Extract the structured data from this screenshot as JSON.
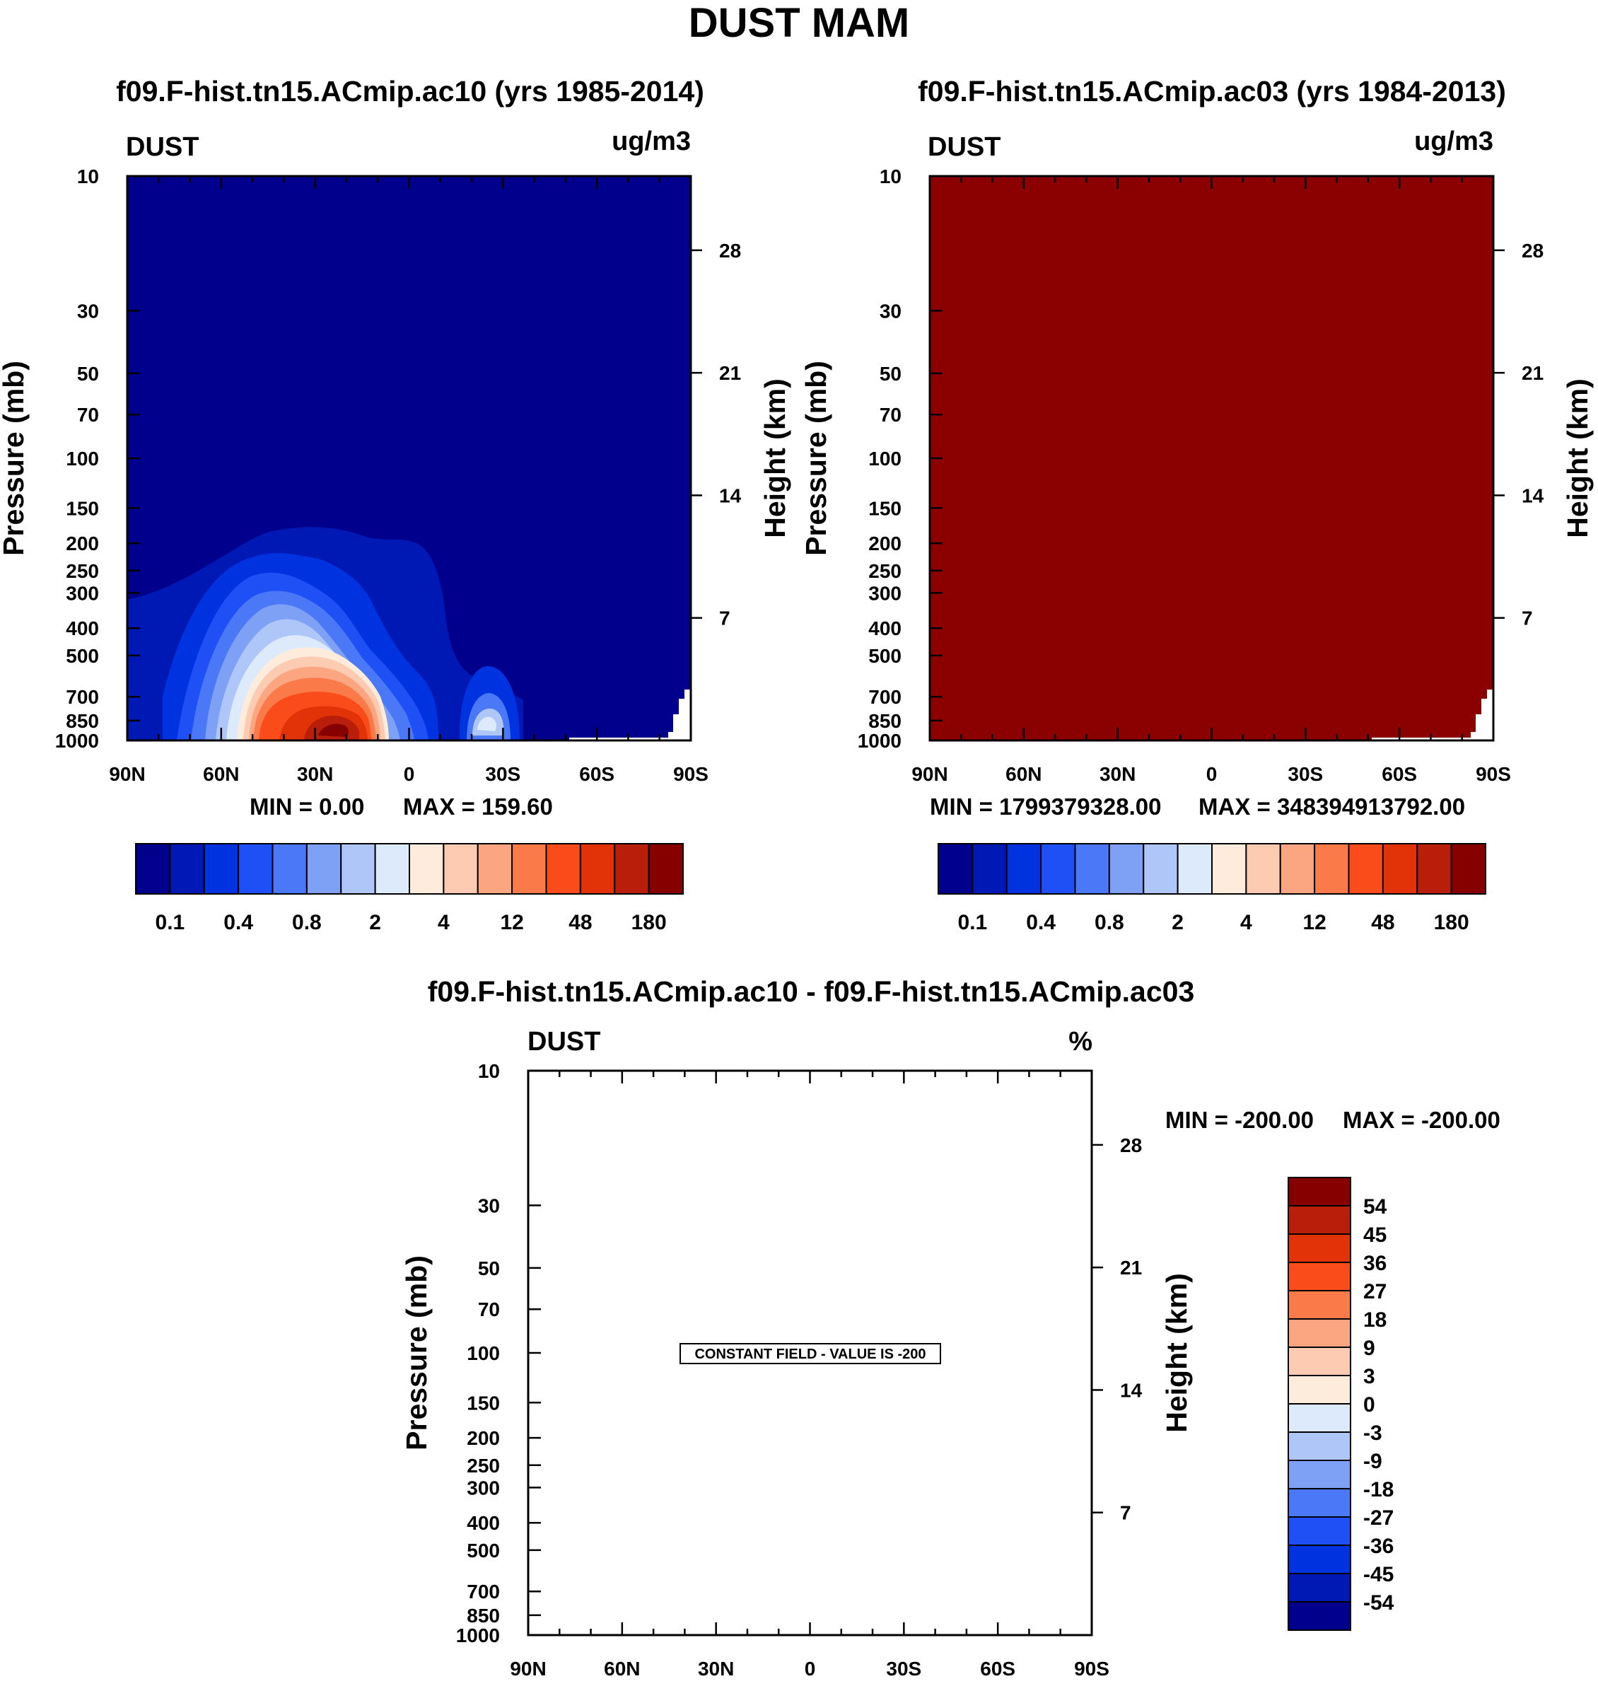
{
  "figure_title": "DUST MAM",
  "colors": {
    "scale14": [
      "#00008C",
      "#0018B4",
      "#0033E0",
      "#1E50F5",
      "#4A78F7",
      "#7EA0F5",
      "#AEC6F8",
      "#DCEAFB",
      "#FDEBDB",
      "#FCCBB2",
      "#FBA680",
      "#FB7A4A",
      "#FA4C1B",
      "#E23208",
      "#B81E0A",
      "#870000"
    ],
    "diff_scale": [
      "#00008C",
      "#0018B4",
      "#0033E0",
      "#1E50F5",
      "#4A78F7",
      "#7EA0F5",
      "#AEC6F8",
      "#DCEAFB",
      "#FDEBDB",
      "#FCCBB2",
      "#FBA680",
      "#FB7A4A",
      "#FA4C1B",
      "#E23208",
      "#B81E0A",
      "#870000"
    ],
    "panel2_fill": "#8B0000"
  },
  "chart_data": [
    {
      "type": "heatmap",
      "title": "f09.F-hist.tn15.ACmip.ac10 (yrs 1985-2014)",
      "left_string": "DUST",
      "right_string": "ug/m3",
      "ylabel": "Pressure (mb)",
      "ylabel_right": "Height (km)",
      "x_ticks": [
        "90N",
        "60N",
        "30N",
        "0",
        "30S",
        "60S",
        "90S"
      ],
      "y_ticks": [
        10,
        30,
        50,
        70,
        100,
        150,
        200,
        250,
        300,
        400,
        500,
        700,
        850,
        1000
      ],
      "y_right_ticks": [
        28,
        21,
        14,
        7
      ],
      "ylim": [
        1000,
        10
      ],
      "min_text": "MIN =   0.00",
      "max_text": "MAX = 159.60",
      "min": 0.0,
      "max": 159.6,
      "colorbar_labels": [
        "0.1",
        "0.4",
        "0.8",
        "2",
        "4",
        "12",
        "48",
        "180"
      ],
      "peak": {
        "lat": 25,
        "pressure": 950
      }
    },
    {
      "type": "heatmap",
      "title": "f09.F-hist.tn15.ACmip.ac03 (yrs 1984-2013)",
      "left_string": "DUST",
      "right_string": "ug/m3",
      "ylabel": "Pressure (mb)",
      "ylabel_right": "Height (km)",
      "x_ticks": [
        "90N",
        "60N",
        "30N",
        "0",
        "30S",
        "60S",
        "90S"
      ],
      "y_ticks": [
        10,
        30,
        50,
        70,
        100,
        150,
        200,
        250,
        300,
        400,
        500,
        700,
        850,
        1000
      ],
      "y_right_ticks": [
        28,
        21,
        14,
        7
      ],
      "ylim": [
        1000,
        10
      ],
      "min_text": "MIN = 1799379328.00",
      "max_text": "MAX = 348394913792.00",
      "min": 1799379328.0,
      "max": 348394913792.0,
      "colorbar_labels": [
        "0.1",
        "0.4",
        "0.8",
        "2",
        "4",
        "12",
        "48",
        "180"
      ]
    },
    {
      "type": "heatmap",
      "title": "f09.F-hist.tn15.ACmip.ac10 - f09.F-hist.tn15.ACmip.ac03",
      "left_string": "DUST",
      "right_string": "%",
      "ylabel": "Pressure (mb)",
      "ylabel_right": "Height (km)",
      "x_ticks": [
        "90N",
        "60N",
        "30N",
        "0",
        "30S",
        "60S",
        "90S"
      ],
      "y_ticks": [
        10,
        30,
        50,
        70,
        100,
        150,
        200,
        250,
        300,
        400,
        500,
        700,
        850,
        1000
      ],
      "y_right_ticks": [
        28,
        21,
        14,
        7
      ],
      "ylim": [
        1000,
        10
      ],
      "min_text": "MIN = -200.00",
      "max_text": "MAX = -200.00",
      "min": -200.0,
      "max": -200.0,
      "constant_label": "CONSTANT FIELD - VALUE IS -200",
      "colorbar_labels": [
        "54",
        "45",
        "36",
        "27",
        "18",
        "9",
        "3",
        "0",
        "-3",
        "-9",
        "-18",
        "-27",
        "-36",
        "-45",
        "-54"
      ]
    }
  ]
}
